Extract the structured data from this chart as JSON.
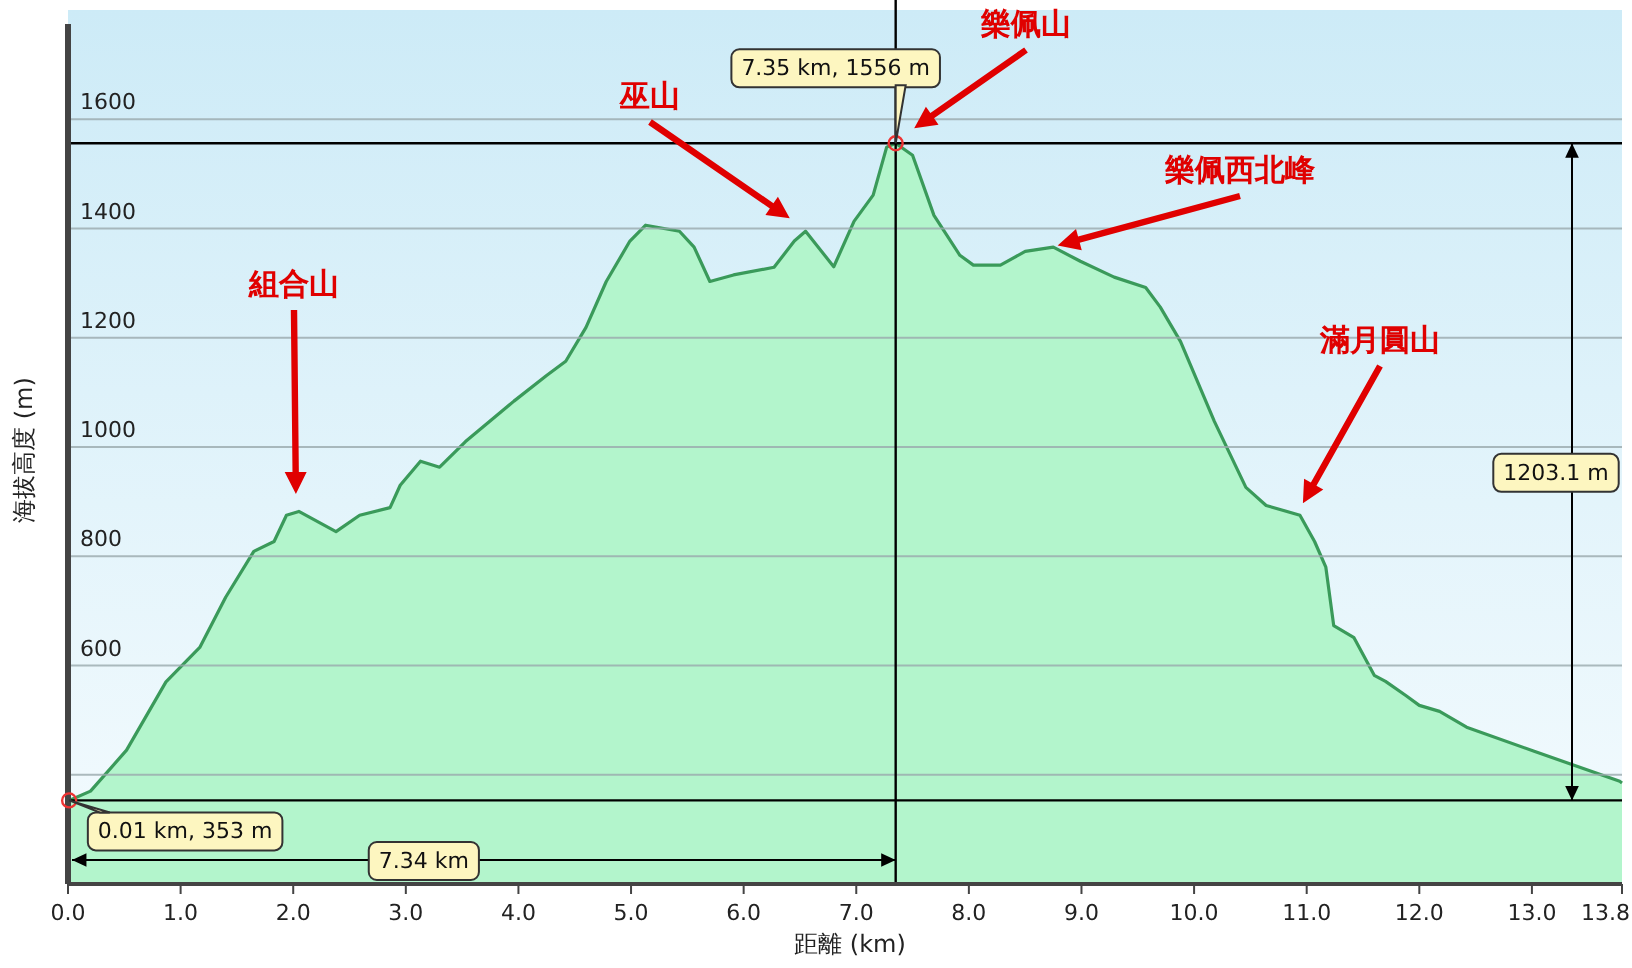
{
  "chart_data": {
    "type": "area",
    "xlabel": "距離 (km)",
    "ylabel": "海拔高度 (m)",
    "x": [
      0.01,
      0.2,
      0.52,
      0.87,
      1.17,
      1.4,
      1.65,
      1.83,
      1.94,
      2.05,
      2.38,
      2.59,
      2.86,
      2.95,
      3.13,
      3.3,
      3.53,
      3.96,
      4.25,
      4.42,
      4.6,
      4.78,
      4.99,
      5.13,
      5.43,
      5.56,
      5.7,
      5.91,
      6.27,
      6.45,
      6.55,
      6.8,
      6.98,
      7.15,
      7.27,
      7.35,
      7.5,
      7.69,
      7.92,
      8.04,
      8.28,
      8.5,
      8.75,
      8.99,
      9.29,
      9.57,
      9.7,
      9.88,
      10.18,
      10.46,
      10.64,
      10.94,
      11.07,
      11.17,
      11.24,
      11.42,
      11.6,
      11.7,
      11.88,
      12.0,
      12.18,
      12.42,
      13.02,
      13.78,
      13.8
    ],
    "series": [
      {
        "color": "#3a9a5a",
        "values": [
          353,
          370,
          445,
          570,
          633,
          725,
          809,
          827,
          875,
          882,
          845,
          875,
          889,
          930,
          974,
          963,
          1010,
          1084,
          1131,
          1157,
          1219,
          1303,
          1377,
          1406,
          1395,
          1366,
          1303,
          1315,
          1329,
          1377,
          1395,
          1330,
          1413,
          1461,
          1549,
          1556,
          1534,
          1424,
          1351,
          1333,
          1333,
          1358,
          1366,
          1340,
          1311,
          1292,
          1256,
          1193,
          1047,
          926,
          893,
          875,
          827,
          780,
          673,
          651,
          582,
          571,
          545,
          527,
          516,
          487,
          443,
          388,
          385
        ]
      }
    ],
    "xlim": [
      0,
      13.8
    ],
    "ylim": [
      200,
      1800
    ],
    "xticks": [
      {
        "value": 0,
        "label": "0.0"
      },
      {
        "value": 1,
        "label": "1.0"
      },
      {
        "value": 2,
        "label": "2.0"
      },
      {
        "value": 3,
        "label": "3.0"
      },
      {
        "value": 4,
        "label": "4.0"
      },
      {
        "value": 5,
        "label": "5.0"
      },
      {
        "value": 6,
        "label": "6.0"
      },
      {
        "value": 7,
        "label": "7.0"
      },
      {
        "value": 8,
        "label": "8.0"
      },
      {
        "value": 9,
        "label": "9.0"
      },
      {
        "value": 10,
        "label": "10.0"
      },
      {
        "value": 11,
        "label": "11.0"
      },
      {
        "value": 12,
        "label": "12.0"
      },
      {
        "value": 13,
        "label": "13.0"
      },
      13.8
    ],
    "yticks": [
      {
        "value": 400,
        "label": null
      },
      600,
      800,
      1000,
      1200,
      1400,
      1600
    ],
    "grid": "y",
    "ref_lines": [
      {
        "axis": "y",
        "value": 1556,
        "color": "#000000"
      },
      {
        "axis": "y",
        "value": 353,
        "color": "#000000"
      },
      {
        "axis": "x",
        "value": 7.35,
        "color": "#000000"
      }
    ],
    "annotations": [
      {
        "text": "7.35 km, 1556 m",
        "x": 7.35,
        "y": 1556
      },
      {
        "text": "0.01 km, 353 m",
        "x": 0.01,
        "y": 353
      },
      "組合山",
      "巫山",
      "樂佩山",
      "樂佩西北峰",
      "滿月圓山",
      "7.34 km",
      "1203.1 m"
    ]
  }
}
